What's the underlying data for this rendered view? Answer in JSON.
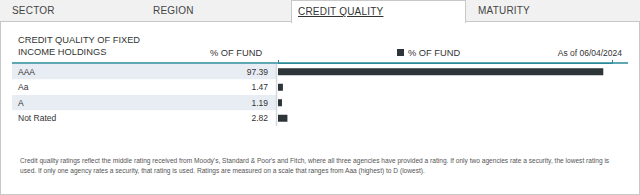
{
  "tabs": [
    {
      "label": "SECTOR",
      "active": false
    },
    {
      "label": "REGION",
      "active": false
    },
    {
      "label": "CREDIT QUALITY",
      "active": true
    },
    {
      "label": "MATURITY",
      "active": false
    }
  ],
  "chart_data": {
    "type": "bar",
    "orientation": "horizontal",
    "title": "CREDIT QUALITY OF FIXED INCOME HOLDINGS",
    "xlabel": "% OF FUND",
    "subtitle": "As of 06/04/2024",
    "categories": [
      "AAA",
      "Aa",
      "A",
      "Not Rated"
    ],
    "series": [
      {
        "name": "% OF FUND",
        "color": "#2e3538",
        "values": [
          97.39,
          1.47,
          1.19,
          2.82
        ]
      }
    ],
    "xlim": [
      0,
      100
    ],
    "xticks": [],
    "data_labels": true,
    "tick_labels": "y",
    "legend": "top"
  },
  "footnote": "Credit quality ratings reflect the middle rating received from Moody's, Standard & Poor's and Fitch, where all three agencies have provided a rating. If only two agencies rate a security, the lowest rating is used. If only one agency rates a security, that rating is used. Ratings are measured on a scale that ranges from Aaa (highest) to D (lowest)."
}
